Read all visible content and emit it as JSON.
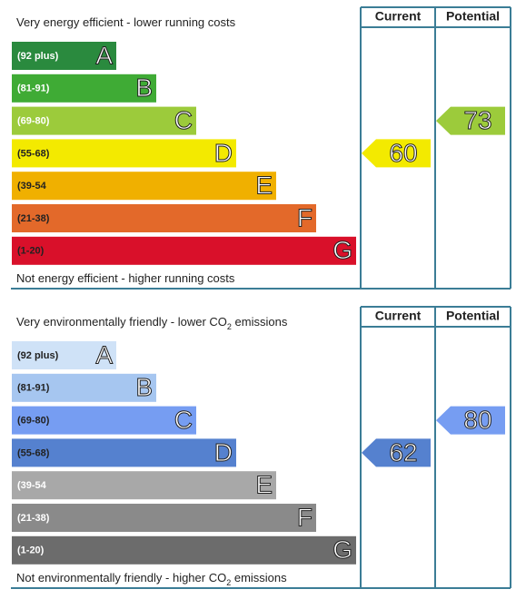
{
  "chart_data": [
    {
      "type": "rating",
      "title_parts": [
        "Very energy efficient - lower running costs"
      ],
      "footer_parts": [
        "Not energy efficient - higher running costs"
      ],
      "columns": [
        "Current",
        "Potential"
      ],
      "bands": [
        {
          "range": "(92 plus)",
          "letter": "A",
          "color": "#2a8a3e",
          "text_color": "#ffffff"
        },
        {
          "range": "(81-91)",
          "letter": "B",
          "color": "#3fab35",
          "text_color": "#ffffff"
        },
        {
          "range": "(69-80)",
          "letter": "C",
          "color": "#9ccb3b",
          "text_color": "#ffffff"
        },
        {
          "range": "(55-68)",
          "letter": "D",
          "color": "#f3ea00",
          "text_color": "#222222"
        },
        {
          "range": "(39-54",
          "letter": "E",
          "color": "#f0b000",
          "text_color": "#222222"
        },
        {
          "range": "(21-38)",
          "letter": "F",
          "color": "#e3692a",
          "text_color": "#222222"
        },
        {
          "range": "(1-20)",
          "letter": "G",
          "color": "#d9102a",
          "text_color": "#222222"
        }
      ],
      "current": 60,
      "potential": 73
    },
    {
      "type": "rating",
      "title_parts": [
        "Very environmentally friendly - lower CO",
        "2",
        " emissions"
      ],
      "footer_parts": [
        "Not environmentally friendly - higher CO",
        "2",
        " emissions"
      ],
      "columns": [
        "Current",
        "Potential"
      ],
      "bands": [
        {
          "range": "(92 plus)",
          "letter": "A",
          "color": "#cfe2f7",
          "text_color": "#222222"
        },
        {
          "range": "(81-91)",
          "letter": "B",
          "color": "#a6c6f0",
          "text_color": "#222222"
        },
        {
          "range": "(69-80)",
          "letter": "C",
          "color": "#769df2",
          "text_color": "#222222"
        },
        {
          "range": "(55-68)",
          "letter": "D",
          "color": "#5581cf",
          "text_color": "#222222"
        },
        {
          "range": "(39-54",
          "letter": "E",
          "color": "#a8a8a8",
          "text_color": "#ffffff"
        },
        {
          "range": "(21-38)",
          "letter": "F",
          "color": "#8a8a8a",
          "text_color": "#ffffff"
        },
        {
          "range": "(1-20)",
          "letter": "G",
          "color": "#6c6c6c",
          "text_color": "#ffffff"
        }
      ],
      "current": 62,
      "potential": 80
    }
  ]
}
